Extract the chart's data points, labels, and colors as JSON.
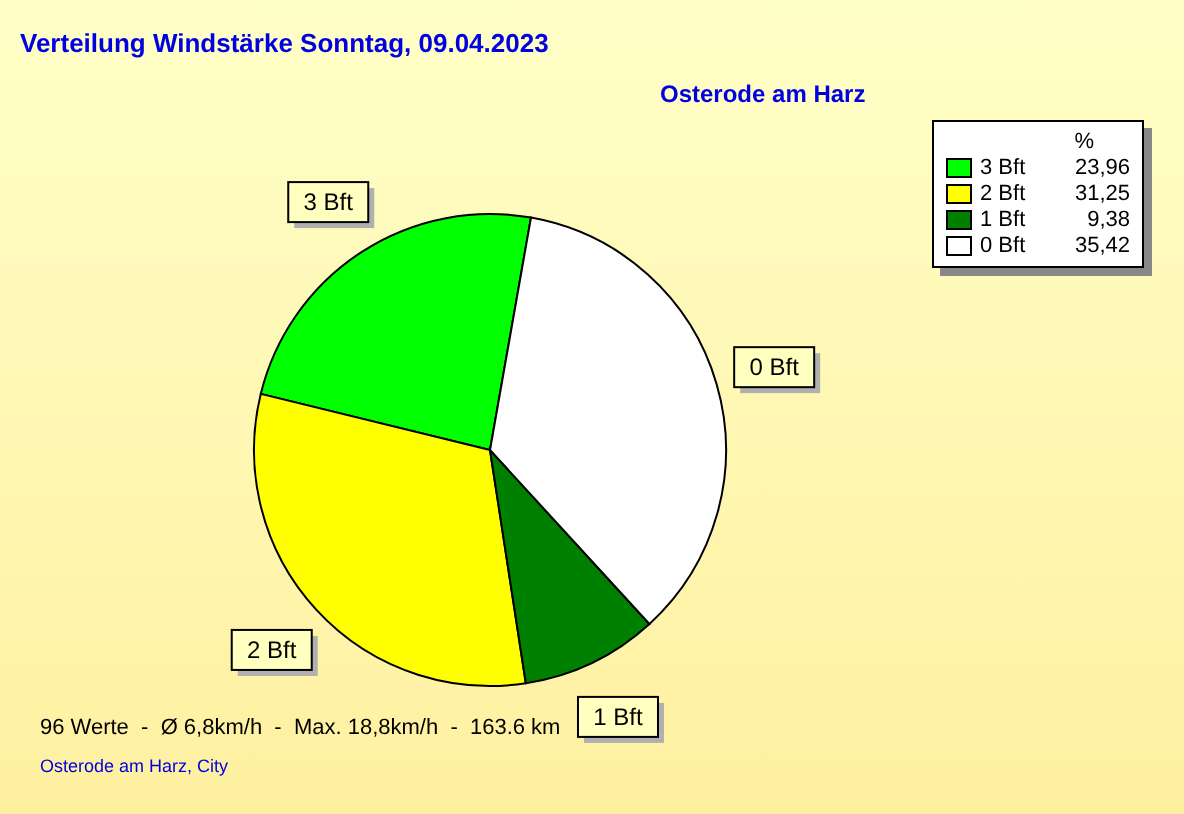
{
  "chart_data": {
    "type": "pie",
    "title": "Verteilung Windstärke  Sonntag, 09.04.2023",
    "subtitle": "Osterode am Harz",
    "legend_title": "%",
    "categories": [
      "3 Bft",
      "2 Bft",
      "1 Bft",
      "0 Bft"
    ],
    "values": [
      23.96,
      31.25,
      9.38,
      35.42
    ],
    "colors": [
      "#00ff00",
      "#ffff00",
      "#008000",
      "#ffffff"
    ],
    "value_labels": [
      "23,96",
      "31,25",
      "9,38",
      "35,42"
    ],
    "legend": "top right",
    "annotations": [
      "96 Werte  -  Ø 6,8km/h  -  Max. 18,8km/h  -  163.6 km",
      "Osterode am Harz, City"
    ]
  }
}
